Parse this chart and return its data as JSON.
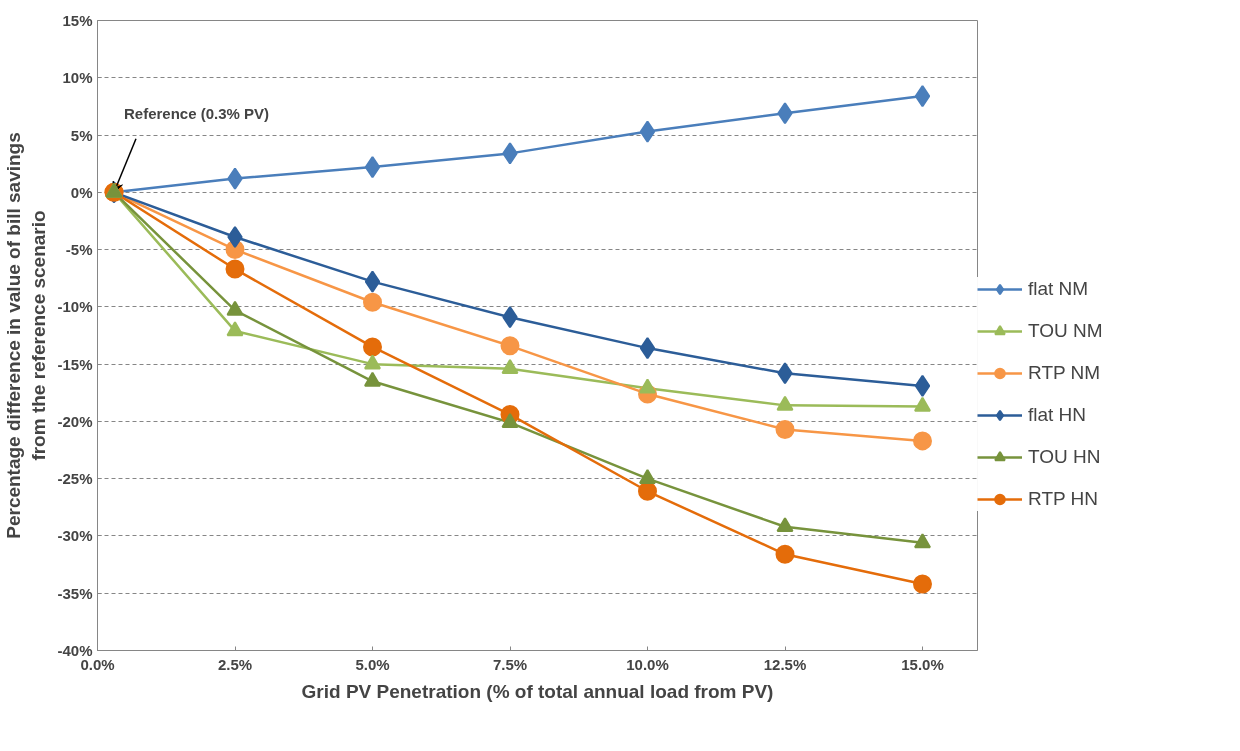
{
  "chart_data": {
    "type": "line",
    "xlabel": "Grid PV Penetration (% of total annual load from PV)",
    "ylabel": "Percentage difference in value of bill savings\nfrom the reference scenario",
    "x": [
      0.3,
      2.5,
      5,
      7.5,
      10,
      12.5,
      15
    ],
    "series": [
      {
        "name": "flat NM",
        "color": "#4a7ebb",
        "marker": "diamond",
        "values": [
          0,
          1.2,
          2.2,
          3.4,
          5.3,
          6.9,
          8.4
        ]
      },
      {
        "name": "TOU NM",
        "color": "#9bbb59",
        "marker": "triangle",
        "values": [
          0,
          -12.1,
          -15.0,
          -15.4,
          -17.1,
          -18.6,
          -18.7
        ]
      },
      {
        "name": "RTP NM",
        "color": "#f79646",
        "marker": "circle",
        "values": [
          0,
          -5.0,
          -9.6,
          -13.4,
          -17.6,
          -20.7,
          -21.7
        ]
      },
      {
        "name": "flat HN",
        "color": "#2c5d98",
        "marker": "diamond",
        "values": [
          0,
          -3.9,
          -7.8,
          -10.9,
          -13.6,
          -15.8,
          -16.9
        ]
      },
      {
        "name": "TOU HN",
        "color": "#77933c",
        "marker": "triangle",
        "values": [
          0,
          -10.3,
          -16.5,
          -20.1,
          -25.0,
          -29.2,
          -30.6
        ]
      },
      {
        "name": "RTP HN",
        "color": "#e46c0a",
        "marker": "circle",
        "values": [
          0,
          -6.7,
          -13.5,
          -19.4,
          -26.1,
          -31.6,
          -34.2
        ]
      }
    ],
    "xlim": [
      0,
      16
    ],
    "xticks": [
      {
        "value": 0,
        "label": "0.0%"
      },
      {
        "value": 2.5,
        "label": "2.5%"
      },
      {
        "value": 5,
        "label": "5.0%"
      },
      {
        "value": 7.5,
        "label": "7.5%"
      },
      {
        "value": 10,
        "label": "10.0%"
      },
      {
        "value": 12.5,
        "label": "12.5%"
      },
      {
        "value": 15,
        "label": "15.0%"
      }
    ],
    "ylim": [
      -40,
      15
    ],
    "yticks": [
      {
        "value": -40,
        "label": "-40%"
      },
      {
        "value": -35,
        "label": "-35%"
      },
      {
        "value": -30,
        "label": "-30%"
      },
      {
        "value": -25,
        "label": "-25%"
      },
      {
        "value": -20,
        "label": "-20%"
      },
      {
        "value": -15,
        "label": "-15%"
      },
      {
        "value": -10,
        "label": "-10%"
      },
      {
        "value": -5,
        "label": "-5%"
      },
      {
        "value": 0,
        "label": "0%"
      },
      {
        "value": 5,
        "label": "5%"
      },
      {
        "value": 10,
        "label": "10%"
      },
      {
        "value": 15,
        "label": "15%"
      }
    ],
    "grid": "y",
    "legend": "right",
    "annotations": [
      {
        "text": "Reference (0.3% PV)",
        "x": 0.3,
        "y": 0
      }
    ]
  }
}
